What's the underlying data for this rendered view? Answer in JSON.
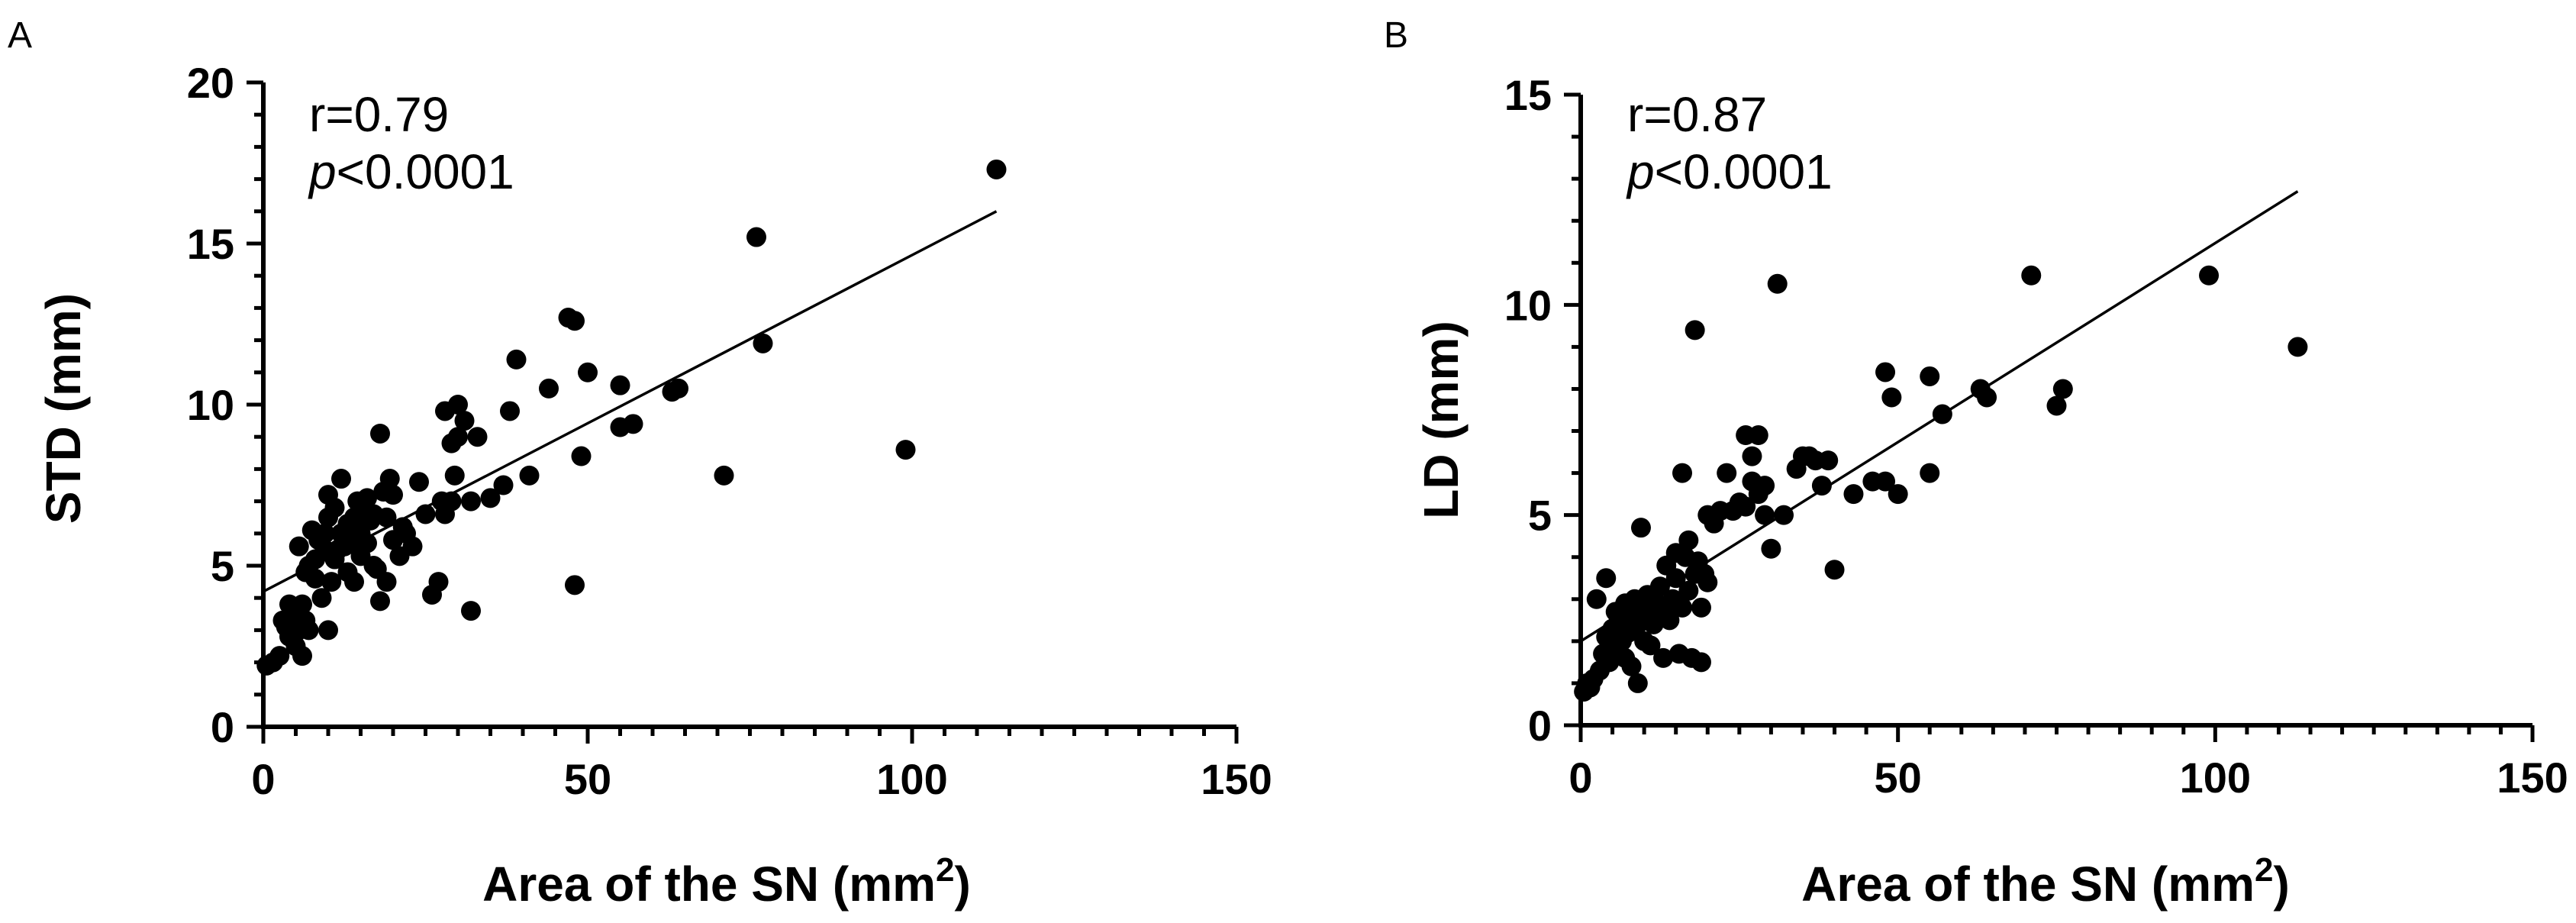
{
  "chart_data": [
    {
      "type": "scatter",
      "panel": "A",
      "xlabel": "Area of the SN (mm",
      "xlabel_sup": "2",
      "xlabel_close": ")",
      "ylabel": "STD (mm)",
      "xlim": [
        0,
        150
      ],
      "ylim": [
        0,
        20
      ],
      "xticks": [
        0,
        50,
        100,
        150
      ],
      "yticks": [
        0,
        5,
        10,
        15,
        20
      ],
      "x_minor_step": 5,
      "y_minor_step": 1,
      "stat_r": "r=0.79",
      "stat_p_symbol": "p",
      "stat_p_value": "<0.0001",
      "fit": {
        "x": [
          0,
          113
        ],
        "y": [
          4.2,
          16.0
        ]
      },
      "points": [
        [
          0.5,
          1.9
        ],
        [
          1.5,
          2.0
        ],
        [
          2.5,
          2.2
        ],
        [
          3,
          3.3
        ],
        [
          3.5,
          3.1
        ],
        [
          4,
          2.8
        ],
        [
          4,
          3.8
        ],
        [
          4.5,
          3.0
        ],
        [
          5,
          2.5
        ],
        [
          5,
          3.4
        ],
        [
          5.5,
          3.0
        ],
        [
          5.5,
          5.6
        ],
        [
          6,
          3.8
        ],
        [
          6,
          2.2
        ],
        [
          6.5,
          4.8
        ],
        [
          6.5,
          3.3
        ],
        [
          7,
          3.0
        ],
        [
          7,
          5.0
        ],
        [
          7.5,
          6.1
        ],
        [
          8,
          5.2
        ],
        [
          8,
          4.6
        ],
        [
          8.5,
          5.8
        ],
        [
          9,
          4.0
        ],
        [
          9.5,
          6.0
        ],
        [
          9.5,
          5.5
        ],
        [
          10,
          7.2
        ],
        [
          10,
          6.5
        ],
        [
          10,
          3.0
        ],
        [
          10.5,
          4.5
        ],
        [
          11,
          5.2
        ],
        [
          11,
          6.8
        ],
        [
          11.5,
          5.5
        ],
        [
          12,
          7.7
        ],
        [
          12,
          6.0
        ],
        [
          12.5,
          5.6
        ],
        [
          13,
          6.3
        ],
        [
          13,
          4.8
        ],
        [
          13.5,
          5.8
        ],
        [
          14,
          6.5
        ],
        [
          14,
          4.5
        ],
        [
          14.5,
          7.0
        ],
        [
          15,
          6.0
        ],
        [
          15,
          5.3
        ],
        [
          15.5,
          6.9
        ],
        [
          16,
          5.7
        ],
        [
          16,
          7.1
        ],
        [
          16.5,
          6.4
        ],
        [
          17,
          5.0
        ],
        [
          17,
          6.6
        ],
        [
          17.5,
          4.9
        ],
        [
          18,
          9.1
        ],
        [
          18,
          3.9
        ],
        [
          18.5,
          7.3
        ],
        [
          19,
          6.5
        ],
        [
          19,
          4.5
        ],
        [
          19.5,
          7.7
        ],
        [
          20,
          5.8
        ],
        [
          20,
          7.2
        ],
        [
          21,
          5.3
        ],
        [
          21.5,
          6.2
        ],
        [
          22,
          6.0
        ],
        [
          23,
          5.6
        ],
        [
          24,
          7.6
        ],
        [
          25,
          6.6
        ],
        [
          26,
          4.1
        ],
        [
          27,
          4.5
        ],
        [
          27.5,
          7.0
        ],
        [
          28,
          6.6
        ],
        [
          28,
          9.8
        ],
        [
          29,
          7.0
        ],
        [
          29,
          8.8
        ],
        [
          29.5,
          7.8
        ],
        [
          30,
          10.0
        ],
        [
          30,
          9.0
        ],
        [
          31,
          9.5
        ],
        [
          32,
          7.0
        ],
        [
          32,
          3.6
        ],
        [
          33,
          9.0
        ],
        [
          35,
          7.1
        ],
        [
          37,
          7.5
        ],
        [
          38,
          9.8
        ],
        [
          39,
          11.4
        ],
        [
          41,
          7.8
        ],
        [
          44,
          10.5
        ],
        [
          47,
          12.7
        ],
        [
          48,
          12.6
        ],
        [
          48,
          4.4
        ],
        [
          49,
          8.4
        ],
        [
          50,
          11.0
        ],
        [
          55,
          10.6
        ],
        [
          55,
          9.3
        ],
        [
          57,
          9.4
        ],
        [
          63,
          10.4
        ],
        [
          64,
          10.5
        ],
        [
          71,
          7.8
        ],
        [
          76,
          15.2
        ],
        [
          77,
          11.9
        ],
        [
          99,
          8.6
        ],
        [
          113,
          17.3
        ]
      ]
    },
    {
      "type": "scatter",
      "panel": "B",
      "xlabel": "Area of the SN (mm",
      "xlabel_sup": "2",
      "xlabel_close": ")",
      "ylabel": "LD (mm)",
      "xlim": [
        0,
        150
      ],
      "ylim": [
        0,
        15
      ],
      "xticks": [
        0,
        50,
        100,
        150
      ],
      "yticks": [
        0,
        5,
        10,
        15
      ],
      "x_minor_step": 5,
      "y_minor_step": 1,
      "stat_r": "r=0.87",
      "stat_p_symbol": "p",
      "stat_p_value": "<0.0001",
      "fit": {
        "x": [
          0,
          113
        ],
        "y": [
          2.0,
          12.7
        ]
      },
      "points": [
        [
          0.5,
          0.8
        ],
        [
          1,
          1.0
        ],
        [
          1.5,
          0.9
        ],
        [
          2,
          1.1
        ],
        [
          2.5,
          3.0
        ],
        [
          3,
          1.3
        ],
        [
          3.5,
          1.7
        ],
        [
          4,
          2.1
        ],
        [
          4,
          3.5
        ],
        [
          4.5,
          1.5
        ],
        [
          5,
          2.3
        ],
        [
          5,
          1.8
        ],
        [
          5.5,
          2.7
        ],
        [
          6,
          1.9
        ],
        [
          6,
          2.5
        ],
        [
          6.5,
          2.0
        ],
        [
          7,
          1.6
        ],
        [
          7,
          2.9
        ],
        [
          7.5,
          2.2
        ],
        [
          8,
          1.4
        ],
        [
          8,
          2.6
        ],
        [
          8.5,
          3.0
        ],
        [
          9,
          1.0
        ],
        [
          9,
          2.4
        ],
        [
          9.5,
          4.7
        ],
        [
          10,
          2.8
        ],
        [
          10,
          2.0
        ],
        [
          10.5,
          3.1
        ],
        [
          11,
          2.6
        ],
        [
          11,
          1.9
        ],
        [
          11.5,
          2.4
        ],
        [
          12,
          2.9
        ],
        [
          12.5,
          3.3
        ],
        [
          13,
          1.6
        ],
        [
          13,
          2.7
        ],
        [
          13.5,
          3.8
        ],
        [
          14,
          2.5
        ],
        [
          14.5,
          3.0
        ],
        [
          15,
          4.1
        ],
        [
          15,
          3.5
        ],
        [
          15.5,
          1.7
        ],
        [
          16,
          2.8
        ],
        [
          16,
          6.0
        ],
        [
          16.5,
          4.0
        ],
        [
          17,
          4.4
        ],
        [
          17,
          3.2
        ],
        [
          17.5,
          1.6
        ],
        [
          18,
          9.4
        ],
        [
          18,
          3.6
        ],
        [
          18.5,
          3.9
        ],
        [
          19,
          1.5
        ],
        [
          19,
          2.8
        ],
        [
          19.5,
          3.6
        ],
        [
          20,
          5.0
        ],
        [
          20,
          3.4
        ],
        [
          21,
          4.8
        ],
        [
          22,
          5.1
        ],
        [
          23,
          6.0
        ],
        [
          24,
          5.1
        ],
        [
          25,
          5.3
        ],
        [
          26,
          6.9
        ],
        [
          26,
          5.2
        ],
        [
          27,
          6.4
        ],
        [
          27,
          5.8
        ],
        [
          28,
          6.9
        ],
        [
          28,
          5.5
        ],
        [
          29,
          5.7
        ],
        [
          29,
          5.0
        ],
        [
          30,
          4.2
        ],
        [
          31,
          10.5
        ],
        [
          32,
          5.0
        ],
        [
          34,
          6.1
        ],
        [
          35,
          6.4
        ],
        [
          36,
          6.4
        ],
        [
          37,
          6.3
        ],
        [
          38,
          5.7
        ],
        [
          39,
          6.3
        ],
        [
          40,
          3.7
        ],
        [
          43,
          5.5
        ],
        [
          46,
          5.8
        ],
        [
          48,
          8.4
        ],
        [
          48,
          5.8
        ],
        [
          49,
          7.8
        ],
        [
          50,
          5.5
        ],
        [
          55,
          8.3
        ],
        [
          55,
          6.0
        ],
        [
          57,
          7.4
        ],
        [
          63,
          8.0
        ],
        [
          64,
          7.8
        ],
        [
          71,
          10.7
        ],
        [
          75,
          7.6
        ],
        [
          76,
          8.0
        ],
        [
          99,
          10.7
        ],
        [
          113,
          9.0
        ]
      ]
    }
  ]
}
